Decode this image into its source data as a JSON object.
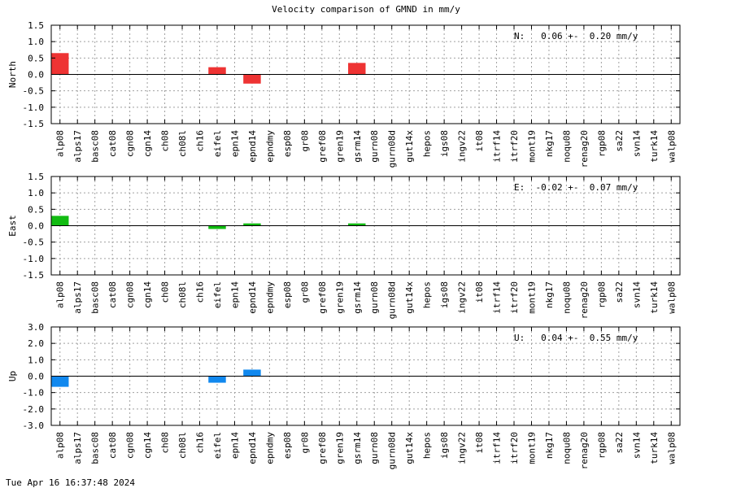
{
  "title": "Velocity comparison of GMND in mm/y",
  "timestamp": "Tue Apr 16 16:37:48 2024",
  "chart_data": {
    "type": "bar",
    "categories": [
      "alp08",
      "alps17",
      "basc08",
      "cat08",
      "cgn08",
      "cgn14",
      "ch08",
      "ch08l",
      "ch16",
      "eifel",
      "epn14",
      "epnd14",
      "epndmy",
      "esp08",
      "gr08",
      "gref08",
      "gren19",
      "gsrm14",
      "gurn08",
      "gurn08d",
      "gut14x",
      "hepos",
      "igs08",
      "ingv22",
      "it08",
      "itrf14",
      "itrf20",
      "mont19",
      "nkg17",
      "noqu08",
      "renag20",
      "rgp08",
      "sa22",
      "svn14",
      "turk14",
      "walp08"
    ],
    "panels": [
      {
        "ylabel": "North",
        "ylim": [
          -1.5,
          1.5
        ],
        "yticks": [
          "1.5",
          "1.0",
          "0.5",
          "0.0",
          "-0.5",
          "-1.0",
          "-1.5"
        ],
        "ytick_values": [
          1.5,
          1.0,
          0.5,
          0.0,
          -0.5,
          -1.0,
          -1.5
        ],
        "summary": "N:   0.06 +-  0.20 mm/y",
        "color": "#ee3333",
        "values": [
          0.65,
          0,
          0,
          0,
          0,
          0,
          0,
          0,
          0,
          0.22,
          0,
          -0.28,
          0,
          0,
          0,
          0,
          0,
          0.35,
          0,
          0,
          0,
          0,
          0,
          0,
          0,
          0,
          0,
          0,
          0,
          0,
          0,
          0,
          0,
          0,
          0,
          0
        ]
      },
      {
        "ylabel": "East",
        "ylim": [
          -1.5,
          1.5
        ],
        "yticks": [
          "1.5",
          "1.0",
          "0.5",
          "0.0",
          "-0.5",
          "-1.0",
          "-1.5"
        ],
        "ytick_values": [
          1.5,
          1.0,
          0.5,
          0.0,
          -0.5,
          -1.0,
          -1.5
        ],
        "summary": "E:  -0.02 +-  0.07 mm/y",
        "color": "#11bb11",
        "values": [
          0.3,
          0,
          0,
          0,
          0,
          0,
          0,
          0,
          0,
          -0.1,
          0,
          0.07,
          0,
          0,
          0,
          0,
          0,
          0.07,
          0,
          0,
          0,
          0,
          0,
          0,
          0,
          0,
          0,
          0,
          0,
          0,
          0,
          0,
          0,
          0,
          0,
          0
        ]
      },
      {
        "ylabel": "Up",
        "ylim": [
          -3.0,
          3.0
        ],
        "yticks": [
          "3.0",
          "2.0",
          "1.0",
          "0.0",
          "-1.0",
          "-2.0",
          "-3.0"
        ],
        "ytick_values": [
          3.0,
          2.0,
          1.0,
          0.0,
          -1.0,
          -2.0,
          -3.0
        ],
        "summary": "U:   0.04 +-  0.55 mm/y",
        "color": "#1188ee",
        "values": [
          -0.65,
          0,
          0,
          0,
          0,
          0,
          0,
          0,
          0,
          -0.4,
          0,
          0.4,
          0,
          0,
          0,
          0,
          0,
          0,
          0,
          0,
          0,
          0,
          0,
          0,
          0,
          0,
          0,
          0,
          0,
          0,
          0,
          0,
          0,
          0,
          0,
          0
        ]
      }
    ],
    "grid": true
  }
}
